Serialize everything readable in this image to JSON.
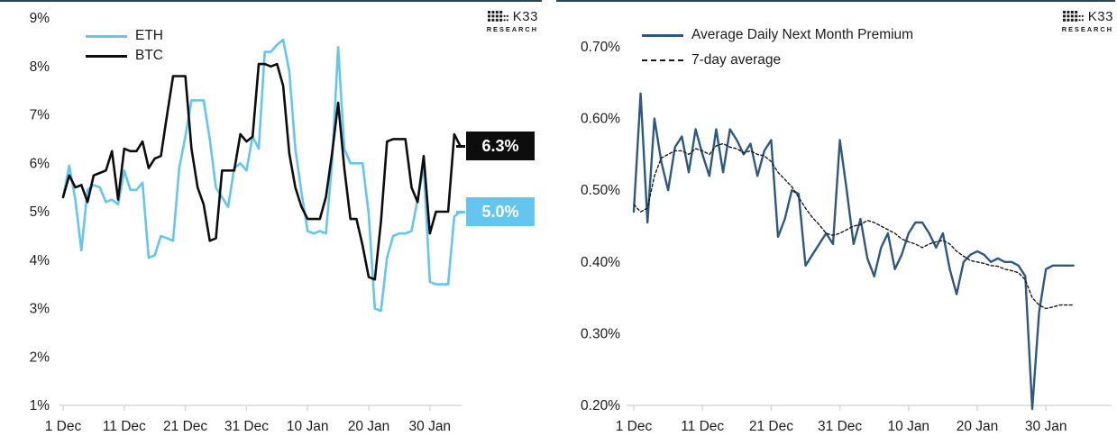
{
  "branding": {
    "brand": "K33",
    "sub": "RESEARCH"
  },
  "colors": {
    "eth_blue": "#63C5F0",
    "btc_black": "#0D0D0D",
    "premium_navy": "#2E587F",
    "avg_dash_black": "#1A1A1A",
    "axis_gray": "#D8D8D8",
    "top_rule": "#2C4257",
    "text": "#1C1C1C",
    "label_text_white": "#FFFFFF"
  },
  "chart_data": [
    {
      "type": "line",
      "title": "",
      "xlabel": "",
      "ylabel": "",
      "grid": false,
      "legend_position": "top-left-inside",
      "ylim": [
        1,
        9
      ],
      "yticks": [
        {
          "label": "9%",
          "value": 9
        },
        {
          "label": "8%",
          "value": 8
        },
        {
          "label": "7%",
          "value": 7
        },
        {
          "label": "6%",
          "value": 6
        },
        {
          "label": "5%",
          "value": 5
        },
        {
          "label": "4%",
          "value": 4
        },
        {
          "label": "3%",
          "value": 3
        },
        {
          "label": "2%",
          "value": 2
        },
        {
          "label": "1%",
          "value": 1
        }
      ],
      "xticks": [
        {
          "label": "1 Dec",
          "day": 0
        },
        {
          "label": "11 Dec",
          "day": 10
        },
        {
          "label": "21 Dec",
          "day": 20
        },
        {
          "label": "31 Dec",
          "day": 30
        },
        {
          "label": "10 Jan",
          "day": 40
        },
        {
          "label": "20 Jan",
          "day": 50
        },
        {
          "label": "30 Jan",
          "day": 60
        }
      ],
      "series": [
        {
          "name": "ETH",
          "color": "#63C5F0",
          "dash": false,
          "values": [
            5.3,
            5.95,
            5.25,
            4.2,
            5.45,
            5.55,
            5.5,
            5.2,
            5.25,
            5.15,
            5.85,
            5.45,
            5.45,
            5.6,
            4.05,
            4.1,
            4.5,
            4.45,
            4.4,
            5.9,
            6.55,
            7.3,
            7.3,
            7.3,
            6.5,
            5.5,
            5.3,
            5.1,
            5.9,
            6.0,
            5.85,
            6.55,
            6.3,
            8.3,
            8.3,
            8.45,
            8.55,
            7.9,
            6.3,
            5.4,
            4.6,
            4.55,
            4.6,
            4.55,
            6.0,
            8.4,
            6.3,
            6.0,
            6.0,
            6.0,
            4.95,
            3.0,
            2.95,
            4.05,
            4.5,
            4.55,
            4.55,
            4.6,
            5.25,
            5.95,
            3.55,
            3.5,
            3.5,
            3.5,
            4.9,
            5.0
          ]
        },
        {
          "name": "BTC",
          "color": "#0D0D0D",
          "dash": false,
          "values": [
            5.3,
            5.75,
            5.5,
            5.55,
            5.2,
            5.75,
            5.8,
            5.85,
            6.25,
            5.25,
            6.3,
            6.25,
            6.25,
            6.45,
            5.9,
            6.1,
            6.15,
            7.0,
            7.8,
            7.8,
            7.8,
            6.3,
            5.5,
            5.15,
            4.4,
            4.45,
            5.85,
            5.85,
            5.85,
            6.6,
            6.45,
            6.55,
            8.05,
            8.05,
            8.0,
            8.05,
            7.6,
            6.2,
            5.5,
            5.1,
            4.85,
            4.85,
            4.85,
            5.3,
            6.2,
            7.25,
            5.9,
            4.85,
            4.85,
            4.3,
            3.65,
            3.6,
            4.8,
            6.45,
            6.5,
            6.5,
            6.5,
            5.5,
            5.2,
            6.15,
            4.55,
            5.0,
            5.0,
            5.0,
            6.6,
            6.35
          ]
        }
      ],
      "end_labels": [
        {
          "text": "6.3%",
          "bg": "#0D0D0D",
          "fg": "#FFFFFF",
          "anchor_value": 6.35
        },
        {
          "text": "5.0%",
          "bg": "#63C5F0",
          "fg": "#FFFFFF",
          "anchor_value": 5.0
        }
      ]
    },
    {
      "type": "line",
      "title": "",
      "xlabel": "",
      "ylabel": "",
      "grid": false,
      "legend_position": "top-left-inside",
      "ylim": [
        0.2,
        0.7
      ],
      "yticks": [
        {
          "label": "0.70%",
          "value": 0.7
        },
        {
          "label": "0.60%",
          "value": 0.6
        },
        {
          "label": "0.50%",
          "value": 0.5
        },
        {
          "label": "0.40%",
          "value": 0.4
        },
        {
          "label": "0.30%",
          "value": 0.3
        },
        {
          "label": "0.20%",
          "value": 0.2
        }
      ],
      "xticks": [
        {
          "label": "1 Dec",
          "day": 0
        },
        {
          "label": "11 Dec",
          "day": 10
        },
        {
          "label": "21 Dec",
          "day": 20
        },
        {
          "label": "31 Dec",
          "day": 30
        },
        {
          "label": "10 Jan",
          "day": 40
        },
        {
          "label": "20 Jan",
          "day": 50
        },
        {
          "label": "30 Jan",
          "day": 60
        }
      ],
      "series": [
        {
          "name": "Average Daily Next Month Premium",
          "color": "#2E587F",
          "dash": false,
          "values": [
            0.47,
            0.635,
            0.455,
            0.6,
            0.54,
            0.5,
            0.56,
            0.575,
            0.525,
            0.585,
            0.55,
            0.52,
            0.585,
            0.525,
            0.585,
            0.57,
            0.55,
            0.565,
            0.52,
            0.555,
            0.57,
            0.435,
            0.46,
            0.5,
            0.495,
            0.395,
            0.41,
            0.425,
            0.44,
            0.425,
            0.57,
            0.5,
            0.425,
            0.46,
            0.405,
            0.38,
            0.42,
            0.44,
            0.39,
            0.41,
            0.44,
            0.455,
            0.455,
            0.44,
            0.42,
            0.44,
            0.39,
            0.355,
            0.4,
            0.41,
            0.415,
            0.41,
            0.4,
            0.405,
            0.4,
            0.4,
            0.395,
            0.38,
            0.195,
            0.33,
            0.39,
            0.395,
            0.395,
            0.395,
            0.395
          ]
        },
        {
          "name": "7-day average",
          "color": "#1A1A1A",
          "dash": true,
          "values": [
            0.48,
            0.47,
            0.475,
            0.52,
            0.545,
            0.55,
            0.555,
            0.555,
            0.55,
            0.558,
            0.555,
            0.55,
            0.562,
            0.565,
            0.56,
            0.558,
            0.552,
            0.555,
            0.55,
            0.548,
            0.54,
            0.525,
            0.515,
            0.505,
            0.49,
            0.475,
            0.462,
            0.452,
            0.44,
            0.437,
            0.44,
            0.445,
            0.45,
            0.452,
            0.458,
            0.455,
            0.45,
            0.445,
            0.44,
            0.432,
            0.428,
            0.425,
            0.42,
            0.425,
            0.428,
            0.43,
            0.425,
            0.415,
            0.408,
            0.402,
            0.4,
            0.398,
            0.395,
            0.394,
            0.39,
            0.388,
            0.385,
            0.375,
            0.35,
            0.34,
            0.335,
            0.337,
            0.34,
            0.34,
            0.34
          ]
        }
      ],
      "end_labels": []
    }
  ]
}
